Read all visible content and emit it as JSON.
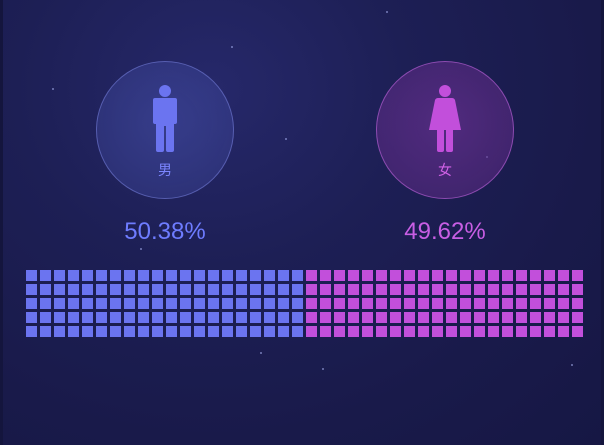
{
  "chart_data": {
    "type": "waffle",
    "series": [
      {
        "name": "男",
        "value": 50.38,
        "percent_label": "50.38%",
        "color": "#6b74f0",
        "icon": "male-person-icon"
      },
      {
        "name": "女",
        "value": 49.62,
        "percent_label": "49.62%",
        "color": "#c24fdb",
        "icon": "female-person-icon"
      }
    ],
    "grid": {
      "columns": 40,
      "rows": 5,
      "columns_per_series": [
        20,
        20
      ]
    }
  }
}
